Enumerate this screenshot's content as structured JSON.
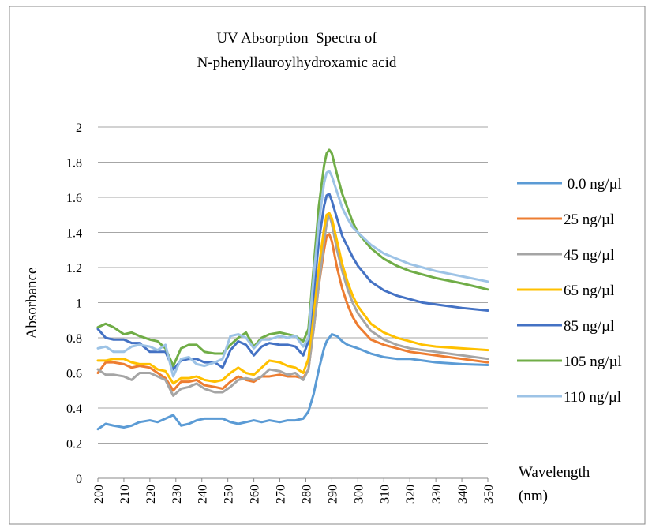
{
  "chart_data": {
    "type": "line",
    "title": [
      "UV Absorption  Spectra of",
      "N-phenyllauroylhydroxamic acid"
    ],
    "y_label": "Absorbance",
    "x_label": [
      "Wavelength",
      "(nm)"
    ],
    "xlim": [
      200,
      350
    ],
    "xticks": [
      200,
      210,
      220,
      230,
      240,
      250,
      260,
      270,
      280,
      290,
      300,
      310,
      320,
      330,
      340,
      350
    ],
    "ylim": [
      0,
      2
    ],
    "yticks": [
      0,
      0.2,
      0.4,
      0.6,
      0.8,
      1,
      1.2,
      1.4,
      1.6,
      1.8,
      2
    ],
    "grid": true,
    "legend": "right",
    "x": [
      200,
      203,
      206,
      210,
      213,
      216,
      220,
      223,
      226,
      229,
      232,
      235,
      238,
      241,
      245,
      248,
      251,
      254,
      257,
      260,
      263,
      266,
      270,
      273,
      276,
      279,
      281,
      283,
      285,
      287,
      288,
      289,
      290,
      292,
      294,
      296,
      298,
      300,
      305,
      310,
      315,
      320,
      325,
      330,
      340,
      350
    ],
    "series": [
      {
        "name": " 0.0 ng/µl",
        "color": "#5b9bd5",
        "values": [
          0.28,
          0.31,
          0.3,
          0.29,
          0.3,
          0.32,
          0.33,
          0.32,
          0.34,
          0.36,
          0.3,
          0.31,
          0.33,
          0.34,
          0.34,
          0.34,
          0.32,
          0.31,
          0.32,
          0.33,
          0.32,
          0.33,
          0.32,
          0.33,
          0.33,
          0.34,
          0.38,
          0.48,
          0.62,
          0.74,
          0.78,
          0.8,
          0.82,
          0.81,
          0.78,
          0.76,
          0.75,
          0.74,
          0.71,
          0.69,
          0.68,
          0.68,
          0.67,
          0.66,
          0.65,
          0.645
        ]
      },
      {
        "name": "25 ng/µl",
        "color": "#ed7d31",
        "values": [
          0.6,
          0.66,
          0.66,
          0.65,
          0.63,
          0.64,
          0.63,
          0.6,
          0.57,
          0.5,
          0.55,
          0.55,
          0.56,
          0.53,
          0.52,
          0.51,
          0.55,
          0.58,
          0.56,
          0.55,
          0.58,
          0.58,
          0.59,
          0.58,
          0.58,
          0.57,
          0.62,
          0.85,
          1.1,
          1.3,
          1.38,
          1.39,
          1.35,
          1.2,
          1.08,
          0.99,
          0.92,
          0.87,
          0.79,
          0.76,
          0.74,
          0.72,
          0.71,
          0.7,
          0.68,
          0.66
        ]
      },
      {
        "name": "45 ng/µl",
        "color": "#a5a5a5",
        "values": [
          0.62,
          0.59,
          0.59,
          0.58,
          0.56,
          0.6,
          0.6,
          0.58,
          0.56,
          0.47,
          0.51,
          0.52,
          0.54,
          0.51,
          0.49,
          0.49,
          0.52,
          0.56,
          0.57,
          0.56,
          0.58,
          0.62,
          0.61,
          0.59,
          0.6,
          0.56,
          0.62,
          0.85,
          1.1,
          1.35,
          1.45,
          1.5,
          1.45,
          1.3,
          1.18,
          1.08,
          1.0,
          0.94,
          0.84,
          0.79,
          0.76,
          0.74,
          0.73,
          0.72,
          0.7,
          0.68
        ]
      },
      {
        "name": "65 ng/µl",
        "color": "#ffc000",
        "values": [
          0.67,
          0.67,
          0.68,
          0.68,
          0.66,
          0.65,
          0.65,
          0.62,
          0.61,
          0.54,
          0.57,
          0.57,
          0.58,
          0.56,
          0.55,
          0.56,
          0.6,
          0.63,
          0.6,
          0.59,
          0.63,
          0.67,
          0.66,
          0.64,
          0.63,
          0.6,
          0.68,
          0.95,
          1.2,
          1.42,
          1.5,
          1.51,
          1.48,
          1.35,
          1.22,
          1.12,
          1.04,
          0.98,
          0.88,
          0.83,
          0.8,
          0.78,
          0.76,
          0.75,
          0.74,
          0.73
        ]
      },
      {
        "name": "85 ng/µl",
        "color": "#4472c4",
        "values": [
          0.85,
          0.8,
          0.79,
          0.79,
          0.77,
          0.77,
          0.72,
          0.72,
          0.72,
          0.62,
          0.67,
          0.68,
          0.68,
          0.66,
          0.66,
          0.63,
          0.73,
          0.78,
          0.76,
          0.7,
          0.75,
          0.77,
          0.76,
          0.76,
          0.75,
          0.7,
          0.78,
          1.05,
          1.35,
          1.55,
          1.61,
          1.62,
          1.58,
          1.48,
          1.38,
          1.32,
          1.26,
          1.21,
          1.12,
          1.07,
          1.04,
          1.02,
          1.0,
          0.99,
          0.97,
          0.955
        ]
      },
      {
        "name": "105 ng/µl",
        "color": "#70ad47",
        "values": [
          0.86,
          0.88,
          0.86,
          0.82,
          0.83,
          0.81,
          0.79,
          0.78,
          0.74,
          0.64,
          0.74,
          0.76,
          0.76,
          0.72,
          0.71,
          0.71,
          0.76,
          0.8,
          0.83,
          0.75,
          0.8,
          0.82,
          0.83,
          0.82,
          0.81,
          0.78,
          0.85,
          1.2,
          1.55,
          1.78,
          1.85,
          1.87,
          1.85,
          1.73,
          1.62,
          1.54,
          1.46,
          1.4,
          1.31,
          1.25,
          1.21,
          1.18,
          1.16,
          1.14,
          1.11,
          1.075
        ]
      },
      {
        "name": "110 ng/µl",
        "color": "#9dc3e6",
        "values": [
          0.74,
          0.75,
          0.72,
          0.72,
          0.75,
          0.76,
          0.75,
          0.73,
          0.76,
          0.58,
          0.68,
          0.69,
          0.65,
          0.64,
          0.66,
          0.68,
          0.81,
          0.82,
          0.8,
          0.74,
          0.79,
          0.79,
          0.81,
          0.8,
          0.81,
          0.75,
          0.8,
          1.15,
          1.45,
          1.68,
          1.74,
          1.75,
          1.72,
          1.63,
          1.54,
          1.48,
          1.43,
          1.4,
          1.33,
          1.28,
          1.25,
          1.22,
          1.2,
          1.18,
          1.15,
          1.12
        ]
      }
    ]
  }
}
